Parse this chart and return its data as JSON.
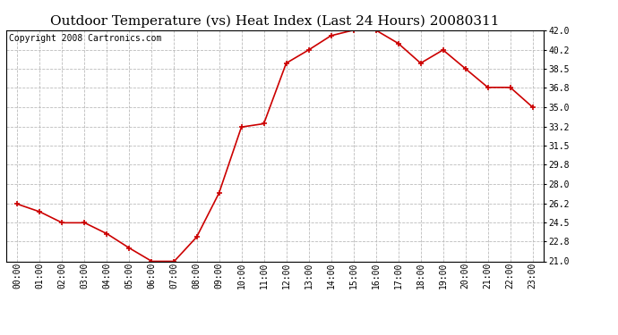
{
  "title": "Outdoor Temperature (vs) Heat Index (Last 24 Hours) 20080311",
  "copyright_text": "Copyright 2008 Cartronics.com",
  "x_labels": [
    "00:00",
    "01:00",
    "02:00",
    "03:00",
    "04:00",
    "05:00",
    "06:00",
    "07:00",
    "08:00",
    "09:00",
    "10:00",
    "11:00",
    "12:00",
    "13:00",
    "14:00",
    "15:00",
    "16:00",
    "17:00",
    "18:00",
    "19:00",
    "20:00",
    "21:00",
    "22:00",
    "23:00"
  ],
  "y_values": [
    26.2,
    25.5,
    24.5,
    24.5,
    23.5,
    22.2,
    21.0,
    21.0,
    23.2,
    27.2,
    33.2,
    33.5,
    39.0,
    40.2,
    41.5,
    42.0,
    42.0,
    40.8,
    39.0,
    40.2,
    38.5,
    36.8,
    36.8,
    35.0
  ],
  "line_color": "#cc0000",
  "marker_color": "#cc0000",
  "bg_color": "#ffffff",
  "grid_color": "#bbbbbb",
  "y_ticks": [
    21.0,
    22.8,
    24.5,
    26.2,
    28.0,
    29.8,
    31.5,
    33.2,
    35.0,
    36.8,
    38.5,
    40.2,
    42.0
  ],
  "y_min": 21.0,
  "y_max": 42.0,
  "title_fontsize": 11,
  "tick_fontsize": 7,
  "copyright_fontsize": 7
}
